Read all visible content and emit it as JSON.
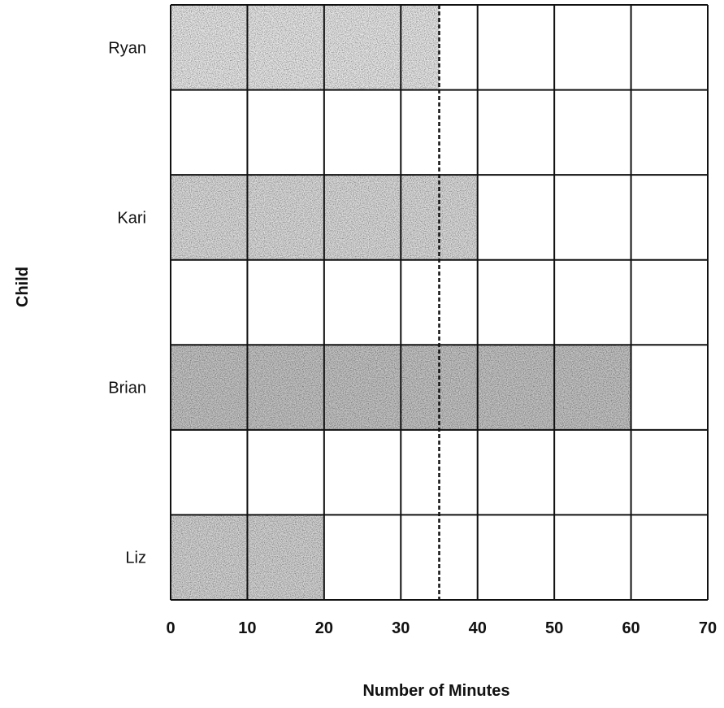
{
  "chart_data": {
    "type": "bar",
    "orientation": "horizontal",
    "xlabel": "Number of Minutes",
    "ylabel": "Child",
    "xlim": [
      0,
      70
    ],
    "xticks": [
      0,
      10,
      20,
      30,
      40,
      50,
      60,
      70
    ],
    "grid": true,
    "reference_line": {
      "value": 35,
      "style": "dashed"
    },
    "rows": [
      "Ryan",
      "",
      "Kari",
      "",
      "Brian",
      "",
      "Liz"
    ],
    "categories": [
      "Ryan",
      "Kari",
      "Brian",
      "Liz"
    ],
    "values": [
      35,
      40,
      60,
      20
    ],
    "bar_shades": [
      "#ececec",
      "#e0e0e0",
      "#c8c8c8",
      "#d8d8d8"
    ]
  }
}
